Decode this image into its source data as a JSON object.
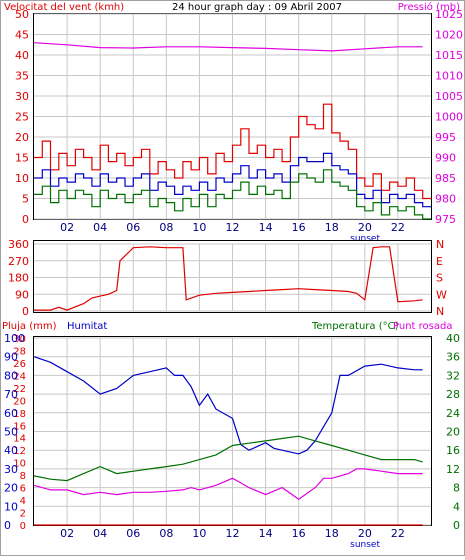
{
  "colors": {
    "wind": "#e00000",
    "wind_avg": "#0000c8",
    "wind_min": "#007000",
    "pressure": "#e000e0",
    "direction": "#e00000",
    "rain": "#e00000",
    "humidity": "#0000c8",
    "temperature": "#007000",
    "dewpoint": "#e000e0",
    "grid": "#c8c8c8"
  },
  "chart_data": [
    {
      "type": "line",
      "title": "24 hour graph day : 09 Abril 2007",
      "ylabel_left": "Velocitat del vent (kmh)",
      "ylabel_right": "Pressió (mb)",
      "x_ticks": [
        "02",
        "04",
        "06",
        "08",
        "10",
        "12",
        "14",
        "16",
        "18",
        "20",
        "22"
      ],
      "sunset_label": "sunset",
      "y_ticks_left": [
        "0",
        "5",
        "10",
        "15",
        "20",
        "25",
        "30",
        "35",
        "40",
        "45",
        "50"
      ],
      "y_ticks_right": [
        "975",
        "980",
        "985",
        "990",
        "995",
        "1000",
        "1005",
        "1010",
        "1015",
        "1020",
        "1025"
      ],
      "ylim_left": [
        0,
        50
      ],
      "ylim_right": [
        975,
        1025
      ],
      "grid": true,
      "series": [
        {
          "key": "gust",
          "color_key": "wind",
          "x": [
            0,
            0.5,
            1,
            1.5,
            2,
            2.5,
            3,
            3.5,
            4,
            4.5,
            5,
            5.5,
            6,
            6.5,
            7,
            7.5,
            8,
            8.5,
            9,
            9.5,
            10,
            10.5,
            11,
            11.5,
            12,
            12.5,
            13,
            13.5,
            14,
            14.5,
            15,
            15.5,
            16,
            16.5,
            17,
            17.5,
            18,
            18.5,
            19,
            19.5,
            20,
            20.5,
            21,
            21.5,
            22,
            22.5,
            23,
            23.5
          ],
          "values": [
            15,
            19,
            12,
            16,
            13,
            17,
            15,
            12,
            18,
            14,
            16,
            13,
            15,
            17,
            11,
            14,
            12,
            10,
            14,
            12,
            15,
            11,
            16,
            14,
            18,
            22,
            16,
            18,
            15,
            17,
            14,
            20,
            25,
            23,
            22,
            28,
            21,
            19,
            17,
            10,
            8,
            11,
            7,
            9,
            8,
            10,
            7,
            5
          ]
        },
        {
          "key": "average",
          "color_key": "wind_avg",
          "x": [
            0,
            0.5,
            1,
            1.5,
            2,
            2.5,
            3,
            3.5,
            4,
            4.5,
            5,
            5.5,
            6,
            6.5,
            7,
            7.5,
            8,
            8.5,
            9,
            9.5,
            10,
            10.5,
            11,
            11.5,
            12,
            12.5,
            13,
            13.5,
            14,
            14.5,
            15,
            15.5,
            16,
            16.5,
            17,
            17.5,
            18,
            18.5,
            19,
            19.5,
            20,
            20.5,
            21,
            21.5,
            22,
            22.5,
            23,
            23.5
          ],
          "values": [
            10,
            12,
            8,
            10,
            9,
            11,
            10,
            8,
            11,
            9,
            10,
            8,
            10,
            11,
            7,
            9,
            8,
            6,
            8,
            7,
            9,
            7,
            10,
            9,
            11,
            13,
            10,
            12,
            10,
            11,
            9,
            13,
            15,
            14,
            14,
            16,
            13,
            12,
            11,
            6,
            5,
            7,
            4,
            6,
            5,
            6,
            4,
            3
          ]
        },
        {
          "key": "minimum",
          "color_key": "wind_min",
          "x": [
            0,
            0.5,
            1,
            1.5,
            2,
            2.5,
            3,
            3.5,
            4,
            4.5,
            5,
            5.5,
            6,
            6.5,
            7,
            7.5,
            8,
            8.5,
            9,
            9.5,
            10,
            10.5,
            11,
            11.5,
            12,
            12.5,
            13,
            13.5,
            14,
            14.5,
            15,
            15.5,
            16,
            16.5,
            17,
            17.5,
            18,
            18.5,
            19,
            19.5,
            20,
            20.5,
            21,
            21.5,
            22,
            22.5,
            23,
            23.5
          ],
          "values": [
            6,
            8,
            4,
            7,
            5,
            7,
            6,
            3,
            7,
            5,
            6,
            4,
            6,
            7,
            3,
            5,
            4,
            2,
            5,
            3,
            6,
            3,
            6,
            5,
            7,
            9,
            6,
            8,
            6,
            7,
            5,
            9,
            11,
            10,
            9,
            12,
            9,
            8,
            7,
            3,
            2,
            4,
            1,
            3,
            2,
            3,
            1,
            0
          ]
        },
        {
          "key": "pressure",
          "color_key": "pressure",
          "axis": "right",
          "x": [
            0,
            2,
            4,
            6,
            8,
            10,
            12,
            14,
            16,
            18,
            20,
            22,
            23.5
          ],
          "values": [
            1018,
            1017.5,
            1016.8,
            1016.7,
            1017,
            1017,
            1016.8,
            1016.6,
            1016.3,
            1016,
            1016.5,
            1017,
            1017
          ]
        }
      ]
    },
    {
      "type": "line",
      "ylabel_right": "N W S E N",
      "compass_labels": [
        "N",
        "W",
        "S",
        "E",
        "N"
      ],
      "y_ticks": [
        "0",
        "90",
        "180",
        "270",
        "360"
      ],
      "x_ticks": [
        "02",
        "04",
        "06",
        "08",
        "10",
        "12",
        "14",
        "16",
        "18",
        "20",
        "22"
      ],
      "ylim": [
        0,
        360
      ],
      "grid": true,
      "series": [
        {
          "key": "wind_direction",
          "color_key": "direction",
          "x": [
            0,
            1,
            1.5,
            2,
            3,
            3.5,
            4,
            4.5,
            5,
            5.2,
            6,
            7,
            8,
            9,
            9.2,
            10,
            11,
            12,
            13,
            14,
            15,
            16,
            17,
            18,
            19,
            19.5,
            20,
            20.5,
            21,
            21.5,
            22,
            23,
            23.5
          ],
          "values": [
            5,
            5,
            20,
            5,
            40,
            70,
            80,
            90,
            110,
            270,
            340,
            345,
            340,
            340,
            60,
            85,
            95,
            100,
            105,
            110,
            115,
            120,
            115,
            110,
            105,
            95,
            60,
            340,
            345,
            345,
            50,
            55,
            60
          ]
        }
      ]
    },
    {
      "type": "line",
      "ylabel_left_1": "Pluja (mm)",
      "ylabel_left_2": "Humitat",
      "ylabel_right_1": "Temperatura (°C)",
      "ylabel_right_2": "Punt rosada",
      "sunset_label": "sunset",
      "x_ticks": [
        "02",
        "04",
        "06",
        "08",
        "10",
        "12",
        "14",
        "16",
        "18",
        "20",
        "22"
      ],
      "y_ticks_rain": [
        "0",
        "2",
        "4",
        "6",
        "8",
        "10",
        "12",
        "14",
        "16",
        "18",
        "20",
        "22",
        "24",
        "26",
        "28",
        "30"
      ],
      "y_ticks_humidity": [
        "0",
        "10",
        "20",
        "30",
        "40",
        "50",
        "60",
        "70",
        "80",
        "90",
        "100"
      ],
      "y_ticks_temp": [
        "0",
        "4",
        "8",
        "12",
        "16",
        "20",
        "24",
        "28",
        "32",
        "36",
        "40"
      ],
      "ylim_humidity": [
        0,
        100
      ],
      "ylim_temp": [
        0,
        40
      ],
      "grid": true,
      "series": [
        {
          "key": "rain",
          "color_key": "rain",
          "axis": "humidity",
          "x": [
            0,
            23.5
          ],
          "values": [
            0,
            0
          ]
        },
        {
          "key": "humidity",
          "color_key": "humidity",
          "axis": "humidity",
          "x": [
            0,
            1,
            2,
            3,
            4,
            5,
            6,
            7,
            8,
            8.5,
            9,
            9.5,
            10,
            10.5,
            11,
            12,
            12.5,
            13,
            14,
            14.5,
            15,
            15.5,
            16,
            16.5,
            17,
            18,
            18.5,
            19,
            20,
            21,
            22,
            23,
            23.5
          ],
          "values": [
            90,
            87,
            82,
            77,
            70,
            73,
            80,
            82,
            84,
            80,
            80,
            74,
            64,
            70,
            62,
            57,
            43,
            40,
            44,
            41,
            40,
            39,
            38,
            40,
            45,
            60,
            80,
            80,
            85,
            86,
            84,
            83,
            83
          ]
        },
        {
          "key": "temperature",
          "color_key": "temperature",
          "axis": "temp",
          "x": [
            0,
            1,
            2,
            3,
            4,
            5,
            6,
            7,
            8,
            9,
            10,
            11,
            12,
            13,
            14,
            15,
            16,
            17,
            18,
            19,
            20,
            21,
            22,
            23,
            23.5
          ],
          "values": [
            10.5,
            9.8,
            9.5,
            11,
            12.5,
            11,
            11.5,
            12,
            12.5,
            13,
            14,
            15,
            17,
            17.5,
            18,
            18.5,
            19,
            18,
            17,
            16,
            15,
            14,
            14,
            14,
            13.5
          ]
        },
        {
          "key": "dewpoint",
          "color_key": "dewpoint",
          "axis": "temp",
          "x": [
            0,
            1,
            2,
            3,
            4,
            5,
            6,
            7,
            8,
            9,
            9.5,
            10,
            11,
            12,
            12.5,
            13,
            14,
            15,
            16,
            17,
            17.5,
            18,
            19,
            19.5,
            20,
            21,
            22,
            23,
            23.5
          ],
          "values": [
            8.5,
            7.5,
            7.5,
            6.5,
            7,
            6.5,
            7,
            7,
            7.2,
            7.5,
            8,
            7.5,
            8.5,
            10,
            9,
            8,
            6.5,
            8,
            5.5,
            8,
            10,
            10,
            11,
            12,
            12,
            11.5,
            11,
            11,
            11
          ]
        }
      ]
    }
  ]
}
